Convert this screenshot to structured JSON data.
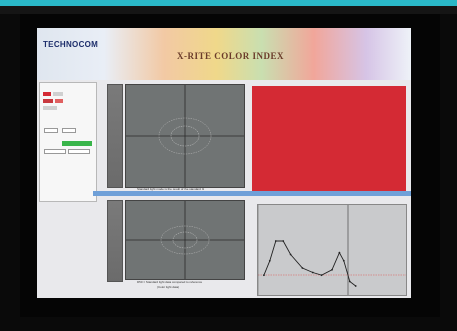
{
  "app": {
    "logo": "TECHNOCOM",
    "title": "X-RITE COLOR INDEX"
  },
  "left_panel": {
    "caption": "",
    "rows": [
      "",
      "",
      "",
      "",
      "",
      ""
    ],
    "green_value": "",
    "table": [
      "",
      "",
      "",
      "",
      "",
      ""
    ]
  },
  "plots": {
    "top_caption": "Standard light mode is the result of the standard I1",
    "bottom_caption_1": "D50 = Standard light data compared to reference",
    "bottom_caption_2": "(Color light data)"
  },
  "bars": {
    "left": "",
    "right": ""
  },
  "colors": {
    "accent_strip": "#2ab8c8",
    "sample_red": "#d42a34",
    "toolbar_blue": "#6fa0d8",
    "spectral_line": "#222222"
  },
  "spectrum": {
    "points": [
      [
        0.04,
        0.78
      ],
      [
        0.08,
        0.62
      ],
      [
        0.12,
        0.4
      ],
      [
        0.17,
        0.4
      ],
      [
        0.22,
        0.55
      ],
      [
        0.3,
        0.7
      ],
      [
        0.37,
        0.75
      ],
      [
        0.43,
        0.78
      ],
      [
        0.5,
        0.72
      ],
      [
        0.55,
        0.53
      ],
      [
        0.58,
        0.62
      ],
      [
        0.62,
        0.85
      ],
      [
        0.66,
        0.9
      ]
    ]
  }
}
